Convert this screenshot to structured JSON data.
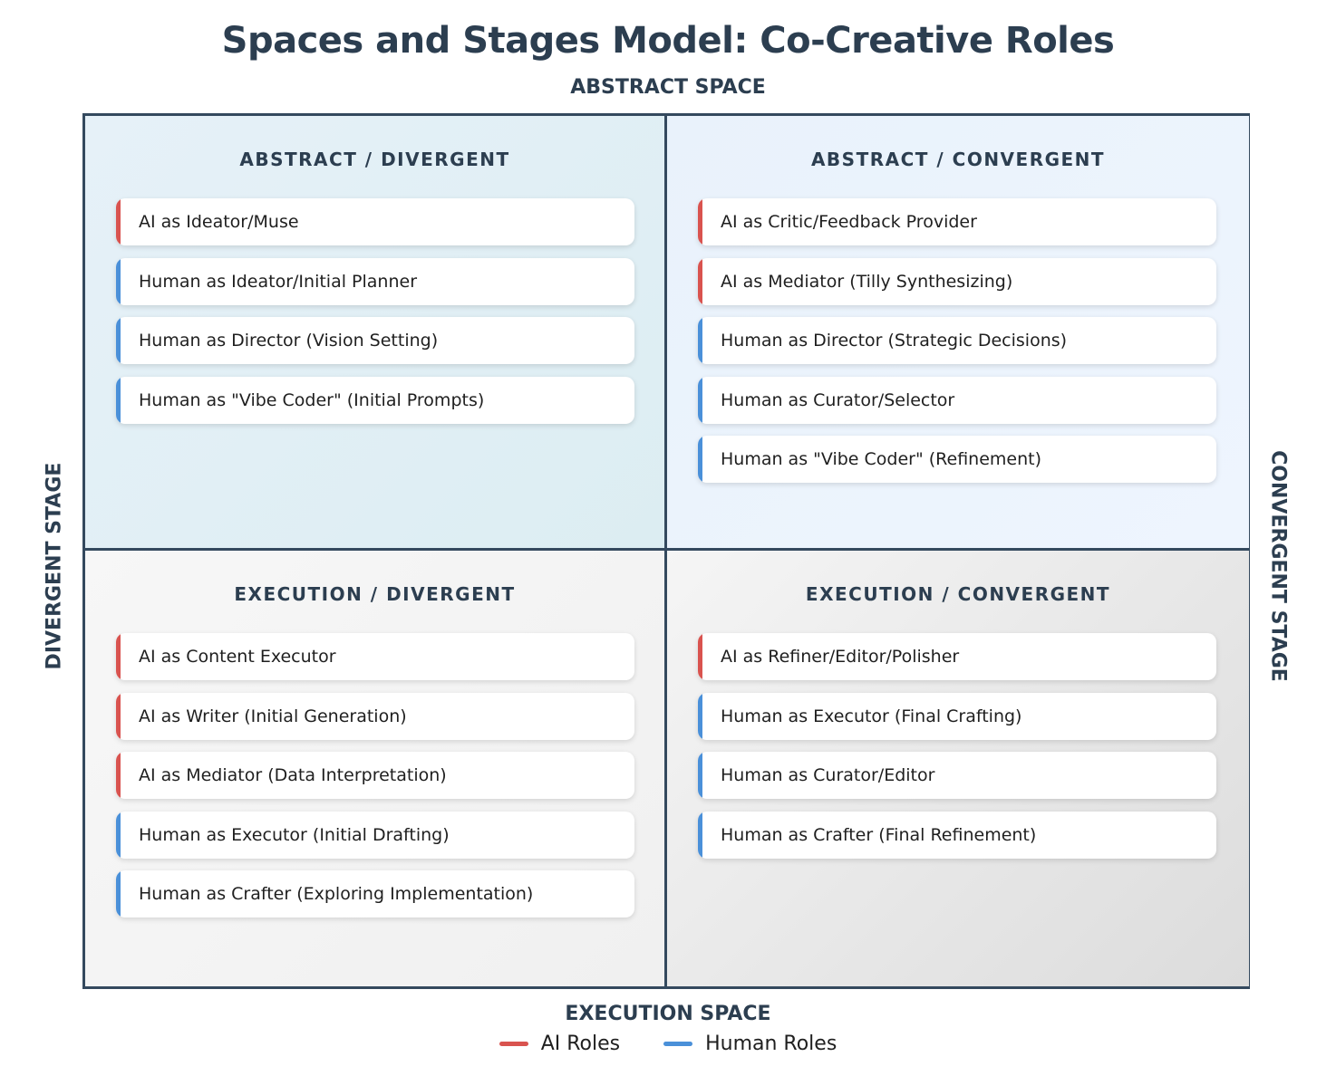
{
  "title": "Spaces and Stages Model: Co-Creative Roles",
  "axes": {
    "top": "ABSTRACT SPACE",
    "bottom": "EXECUTION SPACE",
    "left": "DIVERGENT STAGE",
    "right": "CONVERGENT STAGE"
  },
  "colors": {
    "ai": "#d9534f",
    "human": "#4a90d9",
    "text": "#2c3e50"
  },
  "quadrants": [
    {
      "title": "ABSTRACT / DIVERGENT",
      "roles": [
        {
          "label": "AI as Ideator/Muse",
          "type": "ai"
        },
        {
          "label": "Human as Ideator/Initial Planner",
          "type": "human"
        },
        {
          "label": "Human as Director (Vision Setting)",
          "type": "human"
        },
        {
          "label": "Human as \"Vibe Coder\" (Initial Prompts)",
          "type": "human"
        }
      ]
    },
    {
      "title": "ABSTRACT / CONVERGENT",
      "roles": [
        {
          "label": "AI as Critic/Feedback Provider",
          "type": "ai"
        },
        {
          "label": "AI as Mediator (Tilly Synthesizing)",
          "type": "ai"
        },
        {
          "label": "Human as Director (Strategic Decisions)",
          "type": "human"
        },
        {
          "label": "Human as Curator/Selector",
          "type": "human"
        },
        {
          "label": "Human as \"Vibe Coder\" (Refinement)",
          "type": "human"
        }
      ]
    },
    {
      "title": "EXECUTION / DIVERGENT",
      "roles": [
        {
          "label": "AI as Content Executor",
          "type": "ai"
        },
        {
          "label": "AI as Writer (Initial Generation)",
          "type": "ai"
        },
        {
          "label": "AI as Mediator (Data Interpretation)",
          "type": "ai"
        },
        {
          "label": "Human as Executor (Initial Drafting)",
          "type": "human"
        },
        {
          "label": "Human as Crafter (Exploring Implementation)",
          "type": "human"
        }
      ]
    },
    {
      "title": "EXECUTION / CONVERGENT",
      "roles": [
        {
          "label": "AI as Refiner/Editor/Polisher",
          "type": "ai"
        },
        {
          "label": "Human as Executor (Final Crafting)",
          "type": "human"
        },
        {
          "label": "Human as Curator/Editor",
          "type": "human"
        },
        {
          "label": "Human as Crafter (Final Refinement)",
          "type": "human"
        }
      ]
    }
  ],
  "legend": {
    "ai": "AI Roles",
    "human": "Human Roles"
  }
}
